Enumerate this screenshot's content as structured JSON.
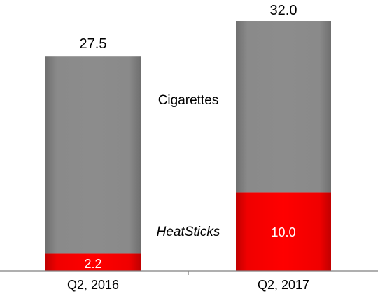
{
  "chart_data": {
    "type": "bar",
    "stacked": true,
    "categories": [
      "Q2, 2016",
      "Q2, 2017"
    ],
    "series": [
      {
        "name": "HeatSticks",
        "values": [
          2.2,
          10.0
        ],
        "labels": [
          "2.2",
          "10.0"
        ],
        "color": "#e00000"
      },
      {
        "name": "Cigarettes",
        "values": [
          25.3,
          22.0
        ],
        "color": "#808080"
      }
    ],
    "totals": [
      27.5,
      32.0
    ],
    "total_labels": [
      "27.5",
      "32.0"
    ],
    "ylim": [
      0,
      32.0
    ],
    "grid": false,
    "legend": "inline labels between bars"
  }
}
